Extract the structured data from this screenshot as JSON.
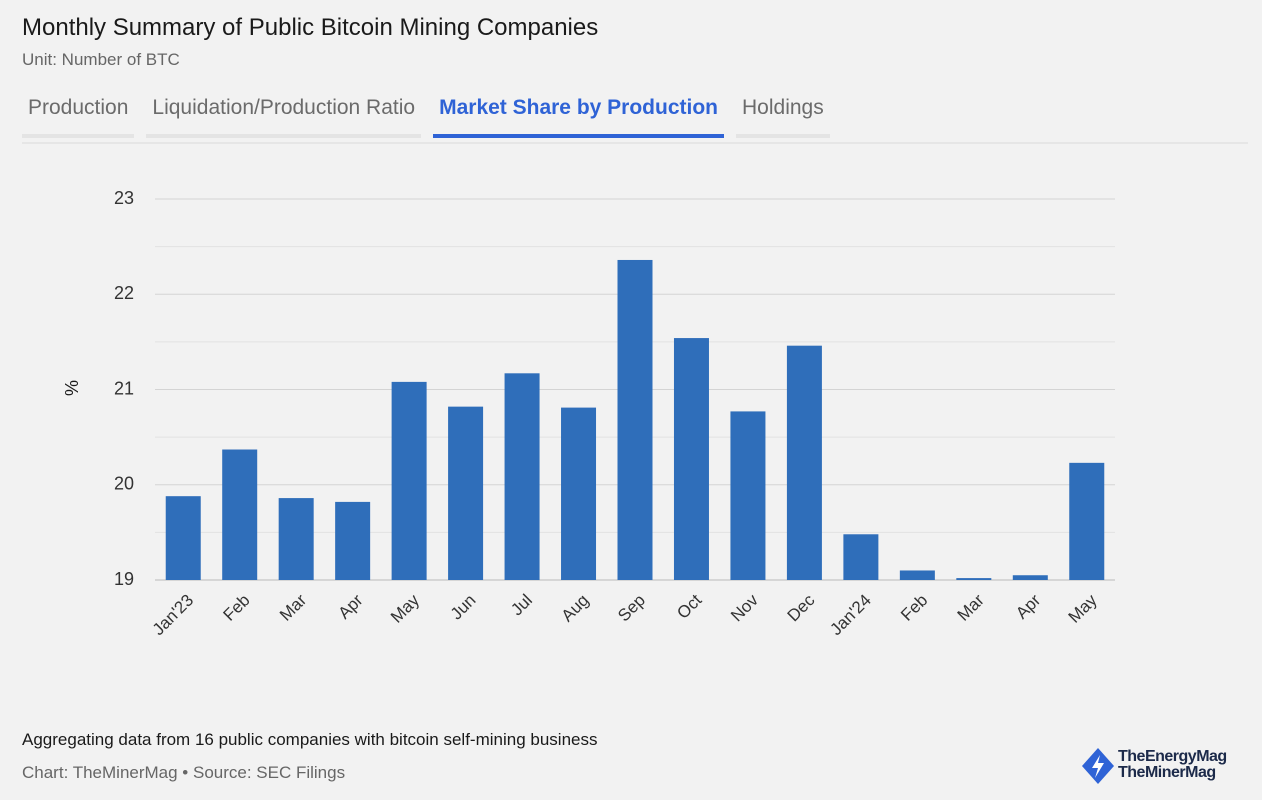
{
  "header": {
    "title": "Monthly Summary of Public Bitcoin Mining Companies",
    "subtitle": "Unit: Number of BTC"
  },
  "tabs": [
    {
      "label": "Production",
      "active": false
    },
    {
      "label": "Liquidation/Production Ratio",
      "active": false
    },
    {
      "label": "Market Share by Production",
      "active": true
    },
    {
      "label": "Holdings",
      "active": false
    }
  ],
  "chart_data": {
    "type": "bar",
    "ylabel": "%",
    "categories": [
      "Jan'23",
      "Feb",
      "Mar",
      "Apr",
      "May",
      "Jun",
      "Jul",
      "Aug",
      "Sep",
      "Oct",
      "Nov",
      "Dec",
      "Jan'24",
      "Feb",
      "Mar",
      "Apr",
      "May"
    ],
    "values": [
      19.88,
      20.37,
      19.86,
      19.82,
      21.08,
      20.82,
      21.17,
      20.81,
      22.36,
      21.54,
      20.77,
      21.46,
      19.48,
      19.1,
      19.02,
      19.05,
      20.23
    ],
    "color": "#2f6eba",
    "ylim": [
      19,
      23
    ],
    "yticks": [
      19,
      20,
      21,
      22,
      23
    ],
    "grid": true,
    "minor_grid": true
  },
  "footer": {
    "note": "Aggregating data from 16 public companies with bitcoin self-mining business",
    "source": "Chart: TheMinerMag • Source: SEC Filings"
  },
  "logo": [
    "TheEnergyMag",
    "TheMinerMag"
  ]
}
